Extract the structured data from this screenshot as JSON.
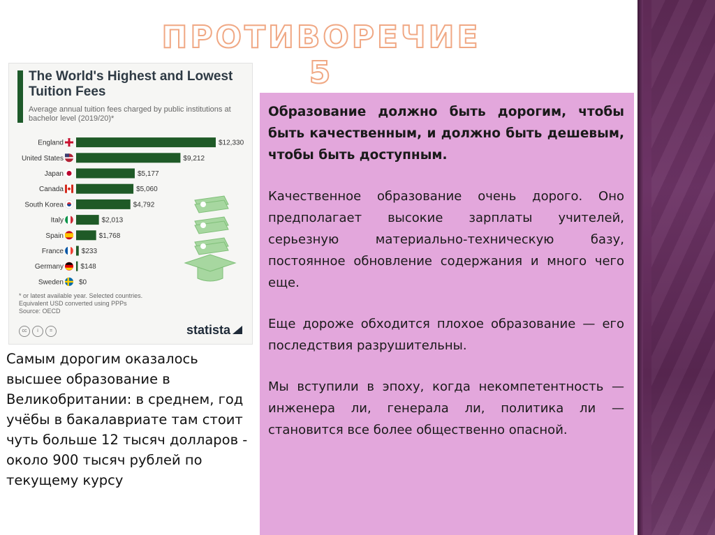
{
  "slide": {
    "title": "ПРОТИВОРЕЧИЕ 5",
    "caption": "Самым дорогим оказалось высшее образование в Великобритании: в среднем, год учёбы в бакалавриате там стоит чуть больше 12 тысяч долларов - около 900 тысяч рублей по текущему курсу",
    "paragraphs": [
      "Образование должно быть дорогим, чтобы быть качественным, и должно быть дешевым, чтобы быть доступным.",
      "Качественное образование очень дорого. Оно предполагает высокие зарплаты учителей, серьезную материально-техническую базу, постоянное обновление содержания и много чего еще.",
      "Еще дороже обходится плохое образование — его последствия разрушительны.",
      "Мы вступили в эпоху, когда некомпетентность — инженера ли, генерала ли, политика ли — становится все более общественно опасной."
    ]
  },
  "colors": {
    "bar": "#1f5a27",
    "pink_box": "#e3a7dc",
    "sidebar": "#5e2a55",
    "title_stroke": "#f0a884"
  },
  "chart_data": {
    "type": "bar",
    "orientation": "horizontal",
    "title": "The World's Highest and Lowest Tuition Fees",
    "subtitle": "Average annual tuition fees charged by public institutions at bachelor level (2019/20)*",
    "categories": [
      "England",
      "United States",
      "Japan",
      "Canada",
      "South Korea",
      "Italy",
      "Spain",
      "France",
      "Germany",
      "Sweden"
    ],
    "values": [
      12330,
      9212,
      5177,
      5060,
      4792,
      2013,
      1768,
      233,
      148,
      0
    ],
    "value_labels": [
      "$12,330",
      "$9,212",
      "$5,177",
      "$5,060",
      "$4,792",
      "$2,013",
      "$1,768",
      "$233",
      "$148",
      "$0"
    ],
    "flag_icons": [
      "england-flag-icon",
      "us-flag-icon",
      "japan-flag-icon",
      "canada-flag-icon",
      "south-korea-flag-icon",
      "italy-flag-icon",
      "spain-flag-icon",
      "france-flag-icon",
      "germany-flag-icon",
      "sweden-flag-icon"
    ],
    "xlim": [
      0,
      12330
    ],
    "grid": false,
    "notes": [
      "* or latest available year. Selected countries.",
      "Equivalent USD converted using PPPs",
      "Source: OECD"
    ],
    "brand": "statista"
  }
}
